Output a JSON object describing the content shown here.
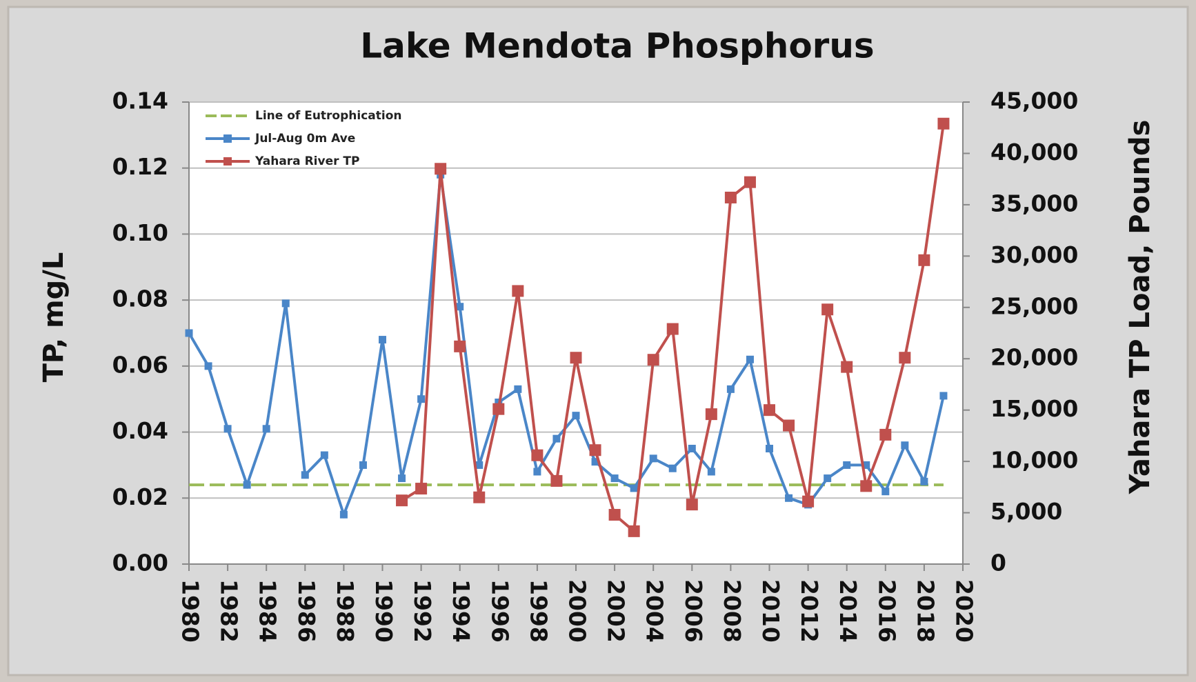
{
  "chart_data": {
    "type": "line",
    "title": "Lake Mendota Phosphorus",
    "ylabel": "TP, mg/L",
    "y2label": "Yahara TP Load, Pounds",
    "x": [
      1980,
      1981,
      1982,
      1983,
      1984,
      1985,
      1986,
      1987,
      1988,
      1989,
      1990,
      1991,
      1992,
      1993,
      1994,
      1995,
      1996,
      1997,
      1998,
      1999,
      2000,
      2001,
      2002,
      2003,
      2004,
      2005,
      2006,
      2007,
      2008,
      2009,
      2010,
      2011,
      2012,
      2013,
      2014,
      2015,
      2016,
      2017,
      2018,
      2019
    ],
    "xlim": [
      1980,
      2020
    ],
    "xticks": [
      1980,
      1982,
      1984,
      1986,
      1988,
      1990,
      1992,
      1994,
      1996,
      1998,
      2000,
      2002,
      2004,
      2006,
      2008,
      2010,
      2012,
      2014,
      2016,
      2018,
      2020
    ],
    "ylim": [
      0,
      0.14
    ],
    "yticks": [
      {
        "value": 0,
        "label": "0.00"
      },
      {
        "value": 0.02,
        "label": "0.02"
      },
      {
        "value": 0.04,
        "label": "0.04"
      },
      {
        "value": 0.06,
        "label": "0.06"
      },
      {
        "value": 0.08,
        "label": "0.08"
      },
      {
        "value": 0.1,
        "label": "0.10"
      },
      {
        "value": 0.12,
        "label": "0.12"
      },
      {
        "value": 0.14,
        "label": "0.14"
      }
    ],
    "y2lim": [
      0,
      45000
    ],
    "y2ticks": [
      0,
      {
        "value": 5000,
        "label": "5,000"
      },
      {
        "value": 10000,
        "label": "10,000"
      },
      {
        "value": 15000,
        "label": "15,000"
      },
      {
        "value": 20000,
        "label": "20,000"
      },
      {
        "value": 25000,
        "label": "25,000"
      },
      {
        "value": 30000,
        "label": "30,000"
      },
      {
        "value": 35000,
        "label": "35,000"
      },
      {
        "value": 40000,
        "label": "40,000"
      },
      {
        "value": 45000,
        "label": "45,000"
      }
    ],
    "grid": true,
    "legend": "upper left",
    "series": [
      {
        "name": "Line of Eutrophication",
        "color": "#9bbb59",
        "dashed": true,
        "x": [
          1980,
          2019
        ],
        "values": [
          0.024,
          0.024
        ]
      },
      {
        "name": "Jul-Aug 0m Ave",
        "color": "#4a86c8",
        "values": [
          0.07,
          0.06,
          0.041,
          0.024,
          0.041,
          0.079,
          0.027,
          0.033,
          0.015,
          0.03,
          0.068,
          0.026,
          0.05,
          0.118,
          0.078,
          0.03,
          0.049,
          0.053,
          0.028,
          0.038,
          0.045,
          0.031,
          0.026,
          0.023,
          0.032,
          0.029,
          0.035,
          0.028,
          0.053,
          0.062,
          0.035,
          0.02,
          0.018,
          0.026,
          0.03,
          0.03,
          0.022,
          0.036,
          0.025,
          0.051
        ]
      },
      {
        "name": "Yahara River TP",
        "color": "#c0504d",
        "axis": "y2",
        "values": [
          null,
          null,
          null,
          null,
          null,
          null,
          null,
          null,
          null,
          null,
          null,
          6200,
          7350,
          38500,
          21200,
          6500,
          15100,
          26600,
          10600,
          8100,
          20100,
          11100,
          4800,
          3200,
          19900,
          22900,
          5800,
          14600,
          35700,
          37200,
          15000,
          13500,
          6100,
          24800,
          19200,
          7600,
          12600,
          20100,
          29600,
          42900
        ]
      }
    ]
  }
}
